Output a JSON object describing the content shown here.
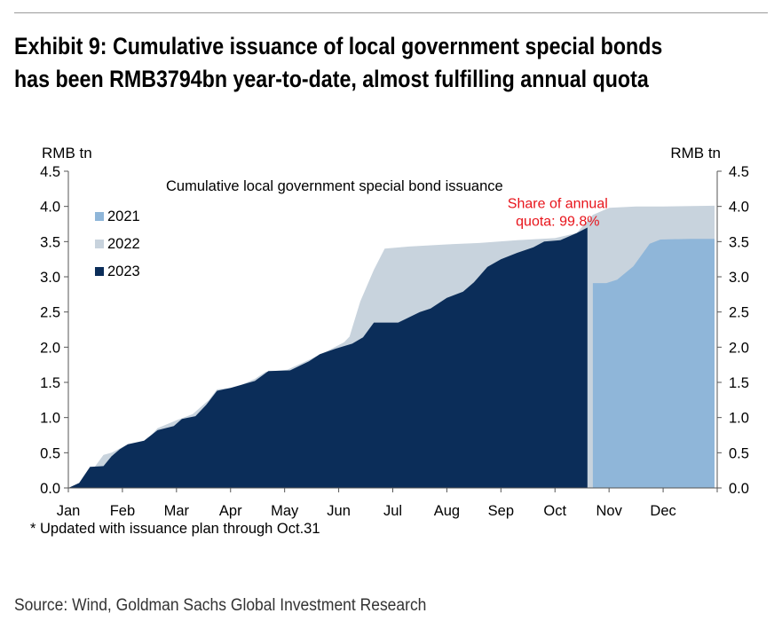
{
  "header": {
    "title_line1": "Exhibit 9: Cumulative issuance of local government special bonds",
    "title_line2": "has been RMB3794bn year-to-date, almost fulfilling annual quota"
  },
  "footer": {
    "source": "Source: Wind, Goldman Sachs Global Investment Research"
  },
  "chart_data": {
    "type": "area",
    "title": "Cumulative local government special bond issuance",
    "ylabel_left": "RMB tn",
    "ylabel_right": "RMB tn",
    "ylim": [
      0,
      4.5
    ],
    "yticks": [
      "0.0",
      "0.5",
      "1.0",
      "1.5",
      "2.0",
      "2.5",
      "3.0",
      "3.5",
      "4.0",
      "4.5"
    ],
    "xlim": [
      0,
      12
    ],
    "x_unit": "month",
    "categories": [
      "Jan",
      "Feb",
      "Mar",
      "Apr",
      "May",
      "Jun",
      "Jul",
      "Aug",
      "Sep",
      "Oct",
      "Nov",
      "Dec"
    ],
    "grid": false,
    "legend_position": "top-left",
    "annotation": {
      "text_line1": "Share of annual",
      "text_line2": "quota: 99.8%",
      "color": "#e8141b",
      "x": 9.05,
      "y": 3.85
    },
    "footnote": "* Updated with issuance plan through Oct.31",
    "series": [
      {
        "name": "2021",
        "color": "#8fb6d9",
        "points": [
          [
            9.7,
            0
          ],
          [
            9.7,
            2.91
          ],
          [
            9.95,
            2.91
          ],
          [
            10.15,
            2.96
          ],
          [
            10.45,
            3.15
          ],
          [
            10.75,
            3.47
          ],
          [
            10.95,
            3.53
          ],
          [
            11.5,
            3.54
          ],
          [
            11.95,
            3.54
          ],
          [
            11.95,
            0
          ]
        ]
      },
      {
        "name": "2022",
        "color": "#c8d3dd",
        "points": [
          [
            0,
            0
          ],
          [
            0.25,
            0.05
          ],
          [
            0.65,
            0.47
          ],
          [
            0.8,
            0.5
          ],
          [
            1.05,
            0.6
          ],
          [
            1.45,
            0.68
          ],
          [
            1.65,
            0.85
          ],
          [
            2.0,
            0.96
          ],
          [
            2.3,
            1.05
          ],
          [
            2.6,
            1.25
          ],
          [
            2.75,
            1.4
          ],
          [
            3.1,
            1.43
          ],
          [
            3.45,
            1.55
          ],
          [
            3.65,
            1.65
          ],
          [
            4.05,
            1.68
          ],
          [
            4.45,
            1.82
          ],
          [
            4.8,
            1.95
          ],
          [
            5.1,
            2.07
          ],
          [
            5.2,
            2.15
          ],
          [
            5.4,
            2.65
          ],
          [
            5.65,
            3.1
          ],
          [
            5.85,
            3.4
          ],
          [
            6.3,
            3.43
          ],
          [
            7.0,
            3.46
          ],
          [
            7.6,
            3.48
          ],
          [
            8.3,
            3.52
          ],
          [
            9.0,
            3.55
          ],
          [
            9.4,
            3.62
          ],
          [
            9.7,
            3.88
          ],
          [
            10.0,
            3.98
          ],
          [
            10.5,
            4.0
          ],
          [
            11.0,
            4.0
          ],
          [
            11.95,
            4.01
          ],
          [
            11.95,
            0
          ]
        ]
      },
      {
        "name": "2023",
        "color": "#0b2d59",
        "points": [
          [
            0,
            0
          ],
          [
            0.2,
            0.07
          ],
          [
            0.4,
            0.3
          ],
          [
            0.65,
            0.31
          ],
          [
            0.8,
            0.45
          ],
          [
            0.95,
            0.55
          ],
          [
            1.1,
            0.62
          ],
          [
            1.4,
            0.67
          ],
          [
            1.65,
            0.82
          ],
          [
            1.95,
            0.88
          ],
          [
            2.1,
            0.98
          ],
          [
            2.35,
            1.02
          ],
          [
            2.55,
            1.18
          ],
          [
            2.75,
            1.38
          ],
          [
            3.0,
            1.42
          ],
          [
            3.45,
            1.52
          ],
          [
            3.7,
            1.66
          ],
          [
            4.1,
            1.67
          ],
          [
            4.45,
            1.8
          ],
          [
            4.65,
            1.9
          ],
          [
            4.95,
            1.98
          ],
          [
            5.25,
            2.05
          ],
          [
            5.45,
            2.14
          ],
          [
            5.65,
            2.35
          ],
          [
            6.1,
            2.35
          ],
          [
            6.5,
            2.5
          ],
          [
            6.7,
            2.55
          ],
          [
            7.0,
            2.7
          ],
          [
            7.3,
            2.79
          ],
          [
            7.5,
            2.92
          ],
          [
            7.75,
            3.14
          ],
          [
            8.0,
            3.25
          ],
          [
            8.3,
            3.34
          ],
          [
            8.6,
            3.42
          ],
          [
            8.8,
            3.5
          ],
          [
            9.1,
            3.52
          ],
          [
            9.4,
            3.62
          ],
          [
            9.6,
            3.7
          ],
          [
            9.6,
            0
          ]
        ]
      }
    ]
  }
}
